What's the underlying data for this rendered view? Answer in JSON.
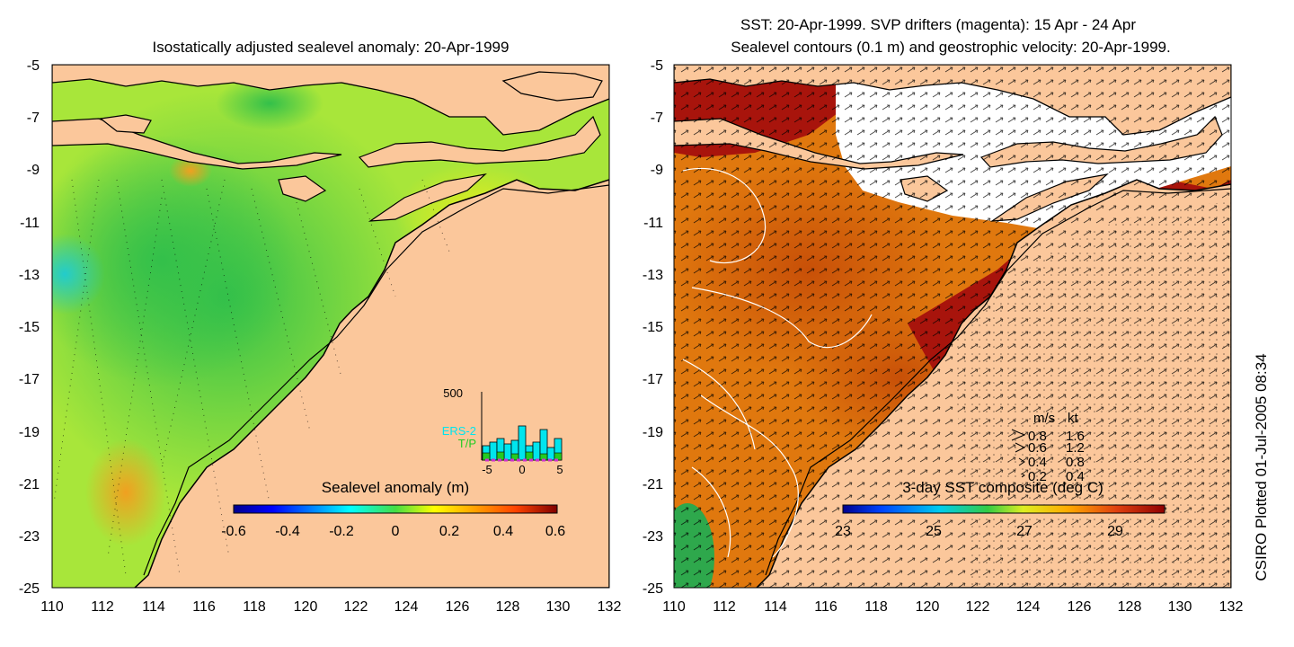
{
  "left_panel": {
    "title": "Isostatically adjusted sealevel anomaly: 20-Apr-1999",
    "lat_ticks": [
      "-5",
      "-7",
      "-9",
      "-11",
      "-13",
      "-15",
      "-17",
      "-19",
      "-21",
      "-23",
      "-25"
    ],
    "lon_ticks": [
      "110",
      "112",
      "114",
      "116",
      "118",
      "120",
      "122",
      "124",
      "126",
      "128",
      "130",
      "132"
    ],
    "colorbar": {
      "title": "Sealevel anomaly (m)",
      "ticks": [
        "-0.6",
        "-0.4",
        "-0.2",
        "0",
        "0.2",
        "0.4",
        "0.6"
      ]
    },
    "inset": {
      "ymax_label": "500",
      "x_ticks": [
        "-5",
        "0",
        "5"
      ],
      "legend": [
        {
          "label": "ERS-2",
          "color": "#00e5ee"
        },
        {
          "label": "T/P",
          "color": "#22cc22"
        }
      ]
    }
  },
  "right_panel": {
    "title_line1": "SST: 20-Apr-1999. SVP drifters (magenta): 15 Apr - 24 Apr",
    "title_line2": "Sealevel contours (0.1 m) and geostrophic velocity: 20-Apr-1999.",
    "lat_ticks": [
      "-5",
      "-7",
      "-9",
      "-11",
      "-13",
      "-15",
      "-17",
      "-19",
      "-21",
      "-23",
      "-25"
    ],
    "lon_ticks": [
      "110",
      "112",
      "114",
      "116",
      "118",
      "120",
      "122",
      "124",
      "126",
      "128",
      "130",
      "132"
    ],
    "colorbar": {
      "title": "3-day SST composite (deg C)",
      "ticks": [
        "23",
        "25",
        "27",
        "29"
      ]
    },
    "velocity_legend": {
      "header_ms": "m/s",
      "header_kt": "kt",
      "rows": [
        {
          "ms": "0.8",
          "kt": "1.6"
        },
        {
          "ms": "0.6",
          "kt": "1.2"
        },
        {
          "ms": "0.4",
          "kt": "0.8"
        },
        {
          "ms": "0.2",
          "kt": "0.4"
        }
      ]
    }
  },
  "credit": "CSIRO Plotted 01-Jul-2005 08:34",
  "colors": {
    "land": "#fbc79b",
    "sla_ocean": "#a8e63a",
    "sst_ocean": "#e0780e",
    "sst_warm": "#a8140c"
  }
}
